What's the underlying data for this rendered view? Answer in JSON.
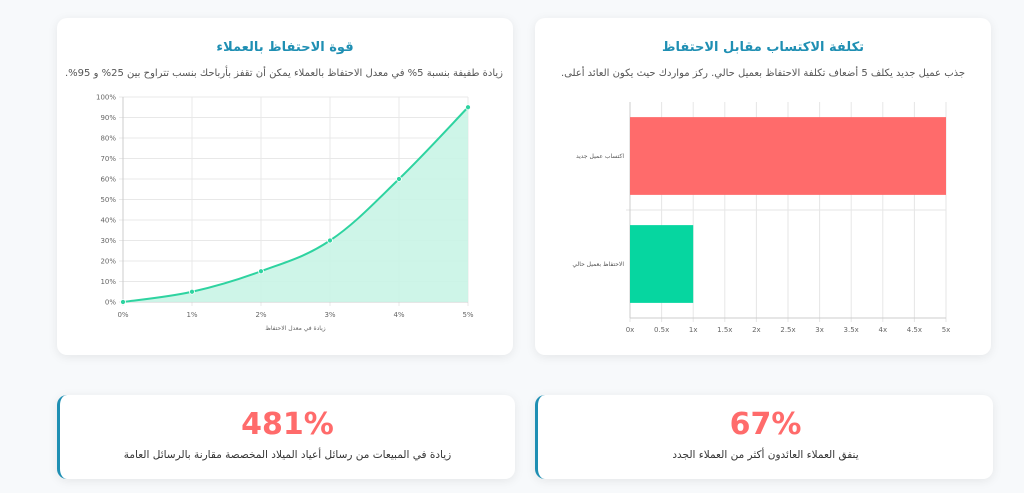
{
  "right_card": {
    "title": "تكلفة الاكتساب مقابل الاحتفاظ",
    "subtitle": "جذب عميل جديد يكلف 5 أضعاف تكلفة الاحتفاظ بعميل حالي. ركز مواردك حيث يكون العائد أعلى."
  },
  "left_card": {
    "title": "قوة الاحتفاظ بالعملاء",
    "subtitle": "زيادة طفيفة بنسبة 5% في معدل الاحتفاظ بالعملاء يمكن أن تقفز بأرباحك بنسب تتراوح بين 25% و 95%."
  },
  "stats": {
    "right_value": "67%",
    "right_label": "ينفق العملاء العائدون أكثر من العملاء الجدد",
    "left_value": "481%",
    "left_label": "زيادة في المبيعات من رسائل أعياد الميلاد المخصصة مقارنة بالرسائل العامة"
  },
  "chart_data": [
    {
      "type": "bar",
      "orientation": "horizontal",
      "categories": [
        "اكتساب عميل جديد",
        "الاحتفاظ بعميل حالي"
      ],
      "values": [
        5,
        1
      ],
      "colors": [
        "#ff6b6b",
        "#06d6a0"
      ],
      "xlim": [
        0,
        5
      ],
      "xticks": [
        "0x",
        "0.5x",
        "1x",
        "1.5x",
        "2x",
        "2.5x",
        "3x",
        "3.5x",
        "4x",
        "4.5x",
        "5x"
      ],
      "grid": true
    },
    {
      "type": "area",
      "x": [
        "0%",
        "1%",
        "2%",
        "3%",
        "4%",
        "5%"
      ],
      "values": [
        0,
        5,
        15,
        30,
        60,
        95
      ],
      "xlabel": "زيادة في معدل الاحتفاظ",
      "ylim": [
        0,
        100
      ],
      "yticks": [
        "0%",
        "10%",
        "20%",
        "30%",
        "40%",
        "50%",
        "60%",
        "70%",
        "80%",
        "90%",
        "100%"
      ],
      "line_color": "#2ed3a0",
      "fill_color": "#c9f4e6",
      "grid": true
    }
  ]
}
